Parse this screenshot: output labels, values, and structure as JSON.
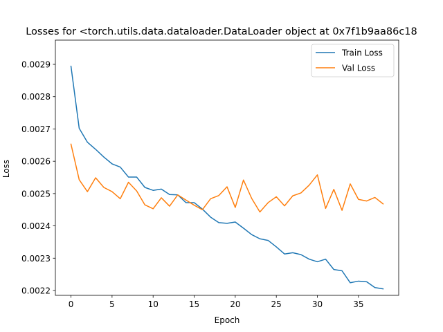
{
  "chart_data": {
    "type": "line",
    "title": "Losses for <torch.utils.data.dataloader.DataLoader object at 0x7f1b9aa86c18",
    "xlabel": "Epoch",
    "ylabel": "Loss",
    "xlim": [
      -1.9,
      39.9
    ],
    "ylim": [
      0.002185,
      0.002975
    ],
    "xticks": [
      0,
      5,
      10,
      15,
      20,
      25,
      30,
      35
    ],
    "yticks": [
      0.0022,
      0.0023,
      0.0024,
      0.0025,
      0.0026,
      0.0027,
      0.0028,
      0.0029
    ],
    "ytick_labels": [
      "0.0022",
      "0.0023",
      "0.0024",
      "0.0025",
      "0.0026",
      "0.0027",
      "0.0028",
      "0.0029"
    ],
    "x": [
      0,
      1,
      2,
      3,
      4,
      5,
      6,
      7,
      8,
      9,
      10,
      11,
      12,
      13,
      14,
      15,
      16,
      17,
      18,
      19,
      20,
      21,
      22,
      23,
      24,
      25,
      26,
      27,
      28,
      29,
      30,
      31,
      32,
      33,
      34,
      35,
      36,
      37,
      38
    ],
    "series": [
      {
        "name": "Train Loss",
        "color": "#1f77b4",
        "values": [
          0.002894,
          0.002702,
          0.002659,
          0.002637,
          0.002613,
          0.002592,
          0.002582,
          0.002551,
          0.002551,
          0.002519,
          0.00251,
          0.002514,
          0.002497,
          0.002496,
          0.002472,
          0.002472,
          0.002452,
          0.002427,
          0.00241,
          0.002408,
          0.002412,
          0.002393,
          0.002373,
          0.00236,
          0.002355,
          0.002335,
          0.002313,
          0.002317,
          0.002311,
          0.002297,
          0.002289,
          0.002297,
          0.002265,
          0.002261,
          0.002224,
          0.002229,
          0.002227,
          0.002209,
          0.002205
        ]
      },
      {
        "name": "Val Loss",
        "color": "#ff7f0e",
        "values": [
          0.002653,
          0.002543,
          0.002506,
          0.002549,
          0.002519,
          0.002506,
          0.002484,
          0.002535,
          0.002508,
          0.002465,
          0.002453,
          0.002487,
          0.002461,
          0.002496,
          0.00248,
          0.002464,
          0.00245,
          0.002484,
          0.002494,
          0.002521,
          0.002457,
          0.002542,
          0.002485,
          0.002443,
          0.002472,
          0.00249,
          0.002462,
          0.002493,
          0.002502,
          0.002526,
          0.002558,
          0.002454,
          0.002513,
          0.002448,
          0.00253,
          0.002482,
          0.002477,
          0.002488,
          0.002468
        ]
      }
    ],
    "legend": "top-right",
    "grid": false
  }
}
